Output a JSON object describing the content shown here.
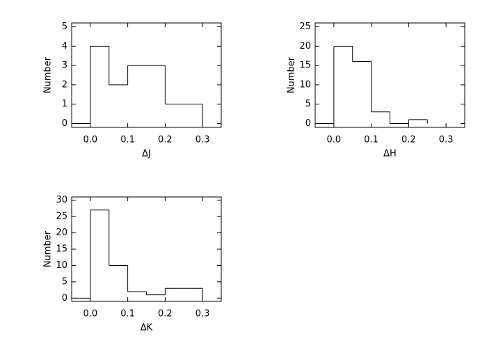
{
  "chart_data": [
    {
      "type": "histogram",
      "xlabel": "ΔJ",
      "ylabel": "Number",
      "bins": [
        0,
        0.05,
        0.1,
        0.15,
        0.2,
        0.25,
        0.3
      ],
      "counts": [
        4,
        2,
        3,
        3,
        1,
        1
      ],
      "color": "#000000",
      "xlim": [
        -0.05,
        0.35
      ],
      "ylim": [
        -0.2,
        5.2
      ],
      "xticks": [
        {
          "value": 0,
          "label": "0.0"
        },
        0.1,
        0.2,
        0.3
      ],
      "yticks": [
        0,
        1,
        2,
        3,
        4,
        5
      ]
    },
    {
      "type": "histogram",
      "xlabel": "ΔH",
      "ylabel": "Number",
      "bins": [
        0,
        0.05,
        0.1,
        0.15,
        0.2,
        0.25
      ],
      "counts": [
        20,
        16,
        3,
        0,
        1
      ],
      "color": "#000000",
      "xlim": [
        -0.05,
        0.35
      ],
      "ylim": [
        -1,
        26
      ],
      "xticks": [
        {
          "value": 0,
          "label": "0.0"
        },
        0.1,
        0.2,
        0.3
      ],
      "yticks": [
        0,
        5,
        10,
        15,
        20,
        25
      ]
    },
    {
      "type": "histogram",
      "xlabel": "ΔK",
      "ylabel": "Number",
      "bins": [
        0,
        0.05,
        0.1,
        0.15,
        0.2,
        0.25,
        0.3
      ],
      "counts": [
        27,
        10,
        2,
        1,
        3,
        3
      ],
      "color": "#000000",
      "xlim": [
        -0.05,
        0.35
      ],
      "ylim": [
        -1,
        31
      ],
      "xticks": [
        {
          "value": 0,
          "label": "0.0"
        },
        0.1,
        0.2,
        0.3
      ],
      "yticks": [
        0,
        5,
        10,
        15,
        20,
        25,
        30
      ]
    }
  ]
}
